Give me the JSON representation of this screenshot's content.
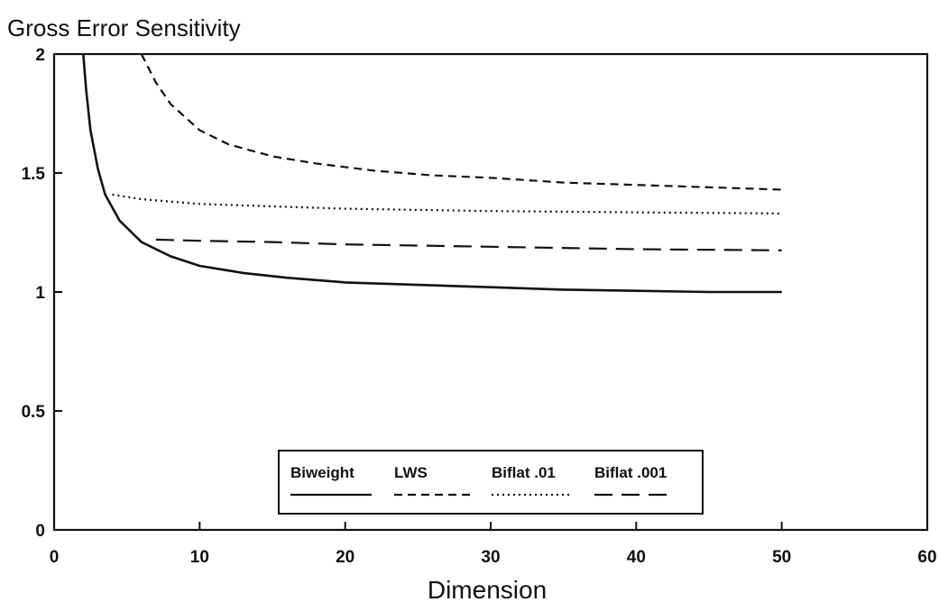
{
  "chart_data": {
    "type": "line",
    "title": "Gross Error Sensitivity",
    "xlabel": "Dimension",
    "ylabel": "",
    "xlim": [
      0,
      60
    ],
    "ylim": [
      0,
      2
    ],
    "x_ticks": [
      "0",
      "10",
      "20",
      "30",
      "40",
      "50",
      "60"
    ],
    "y_ticks": [
      "0",
      "0.5",
      "1",
      "1.5",
      "2"
    ],
    "grid": false,
    "legend_position": "bottom-center",
    "series": [
      {
        "name": "Biweight",
        "style": "solid",
        "points": [
          [
            2,
            2.0
          ],
          [
            2.2,
            1.85
          ],
          [
            2.5,
            1.68
          ],
          [
            3,
            1.52
          ],
          [
            3.5,
            1.41
          ],
          [
            4.5,
            1.3
          ],
          [
            6,
            1.21
          ],
          [
            8,
            1.15
          ],
          [
            10,
            1.11
          ],
          [
            13,
            1.08
          ],
          [
            16,
            1.06
          ],
          [
            20,
            1.04
          ],
          [
            25,
            1.03
          ],
          [
            30,
            1.02
          ],
          [
            35,
            1.01
          ],
          [
            40,
            1.005
          ],
          [
            45,
            1.0
          ],
          [
            50,
            1.0
          ]
        ]
      },
      {
        "name": "LWS",
        "style": "dashed",
        "points": [
          [
            6,
            2.0
          ],
          [
            7,
            1.88
          ],
          [
            8,
            1.79
          ],
          [
            10,
            1.68
          ],
          [
            12,
            1.62
          ],
          [
            15,
            1.57
          ],
          [
            18,
            1.54
          ],
          [
            22,
            1.51
          ],
          [
            26,
            1.49
          ],
          [
            30,
            1.48
          ],
          [
            35,
            1.46
          ],
          [
            40,
            1.45
          ],
          [
            45,
            1.44
          ],
          [
            50,
            1.43
          ]
        ]
      },
      {
        "name": "Biflat .01",
        "style": "dotted",
        "points": [
          [
            4,
            1.41
          ],
          [
            6,
            1.39
          ],
          [
            8,
            1.38
          ],
          [
            10,
            1.37
          ],
          [
            15,
            1.36
          ],
          [
            20,
            1.35
          ],
          [
            30,
            1.34
          ],
          [
            40,
            1.335
          ],
          [
            50,
            1.33
          ]
        ]
      },
      {
        "name": "Biflat .001",
        "style": "long-dashed",
        "points": [
          [
            7,
            1.22
          ],
          [
            10,
            1.215
          ],
          [
            15,
            1.21
          ],
          [
            20,
            1.2
          ],
          [
            30,
            1.19
          ],
          [
            40,
            1.18
          ],
          [
            50,
            1.175
          ]
        ]
      }
    ]
  }
}
